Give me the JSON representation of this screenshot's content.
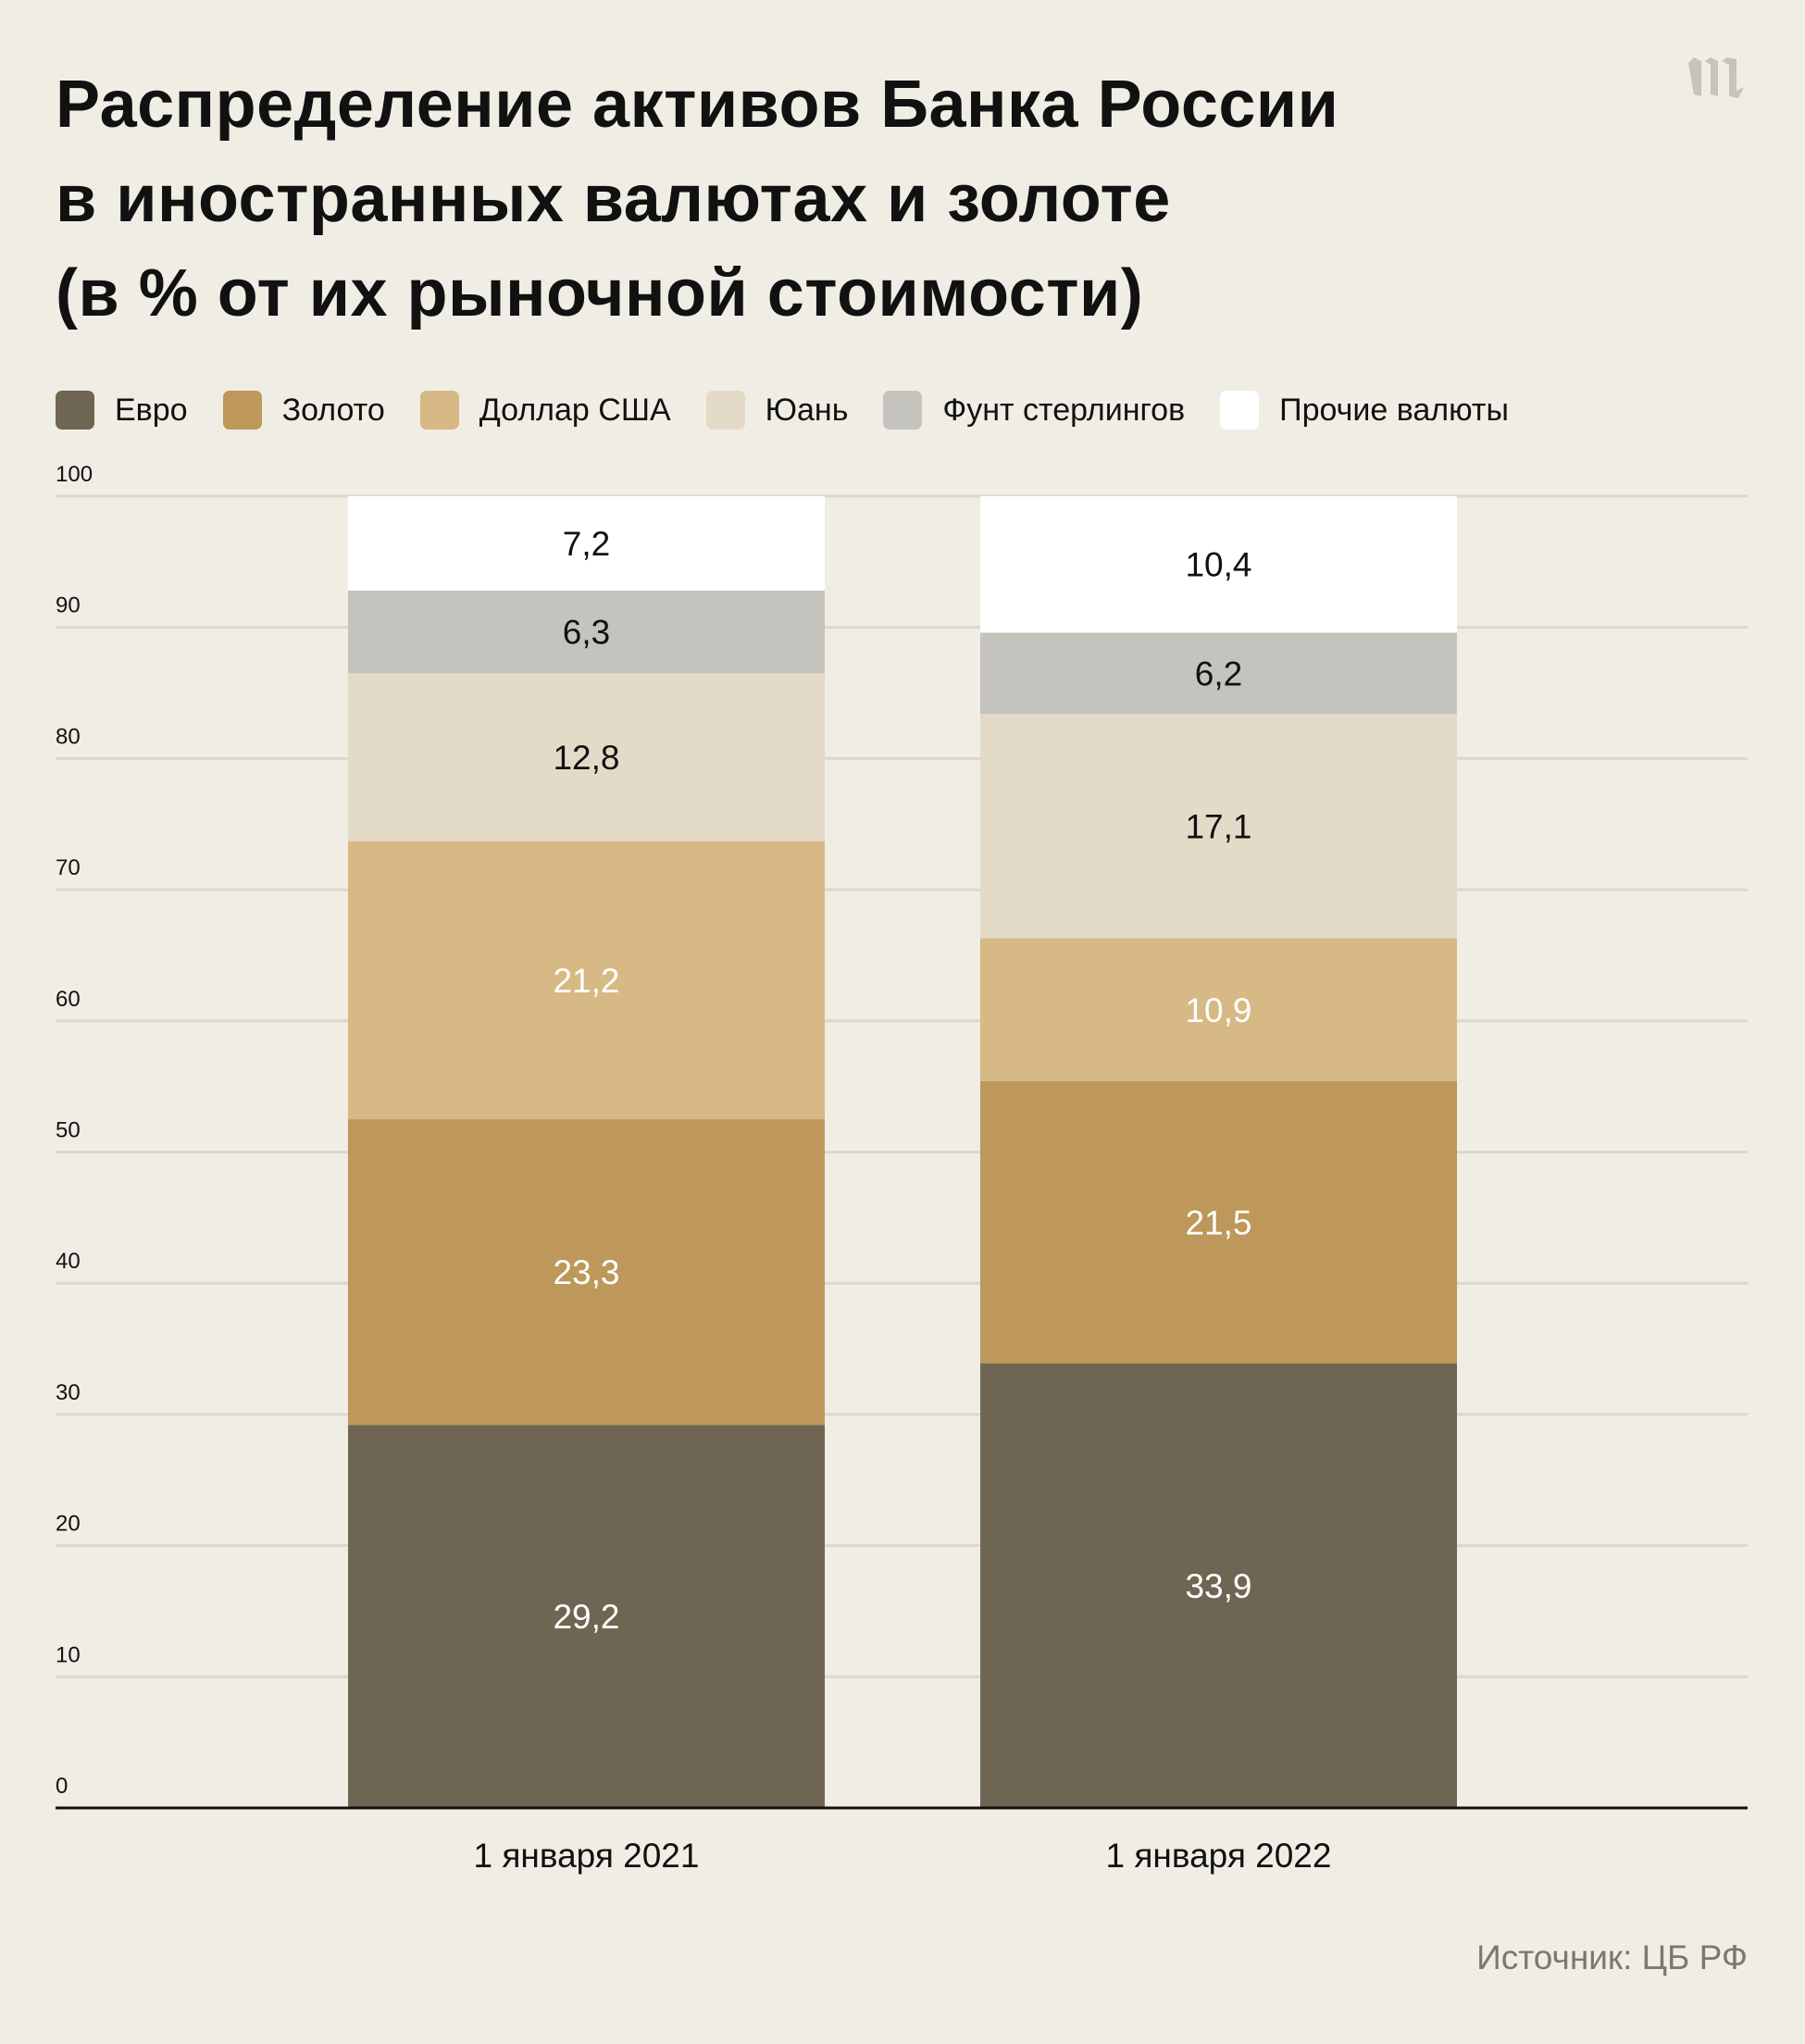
{
  "title_lines": [
    "Распределение активов Банка России",
    "в иностранных валютах и золоте",
    "(в % от их рыночной стоимости)"
  ],
  "logo": "m",
  "source": "Источник: ЦБ РФ",
  "chart_data": {
    "type": "bar",
    "stacked": true,
    "title": "Распределение активов Банка России в иностранных валютах и золоте (в % от их рыночной стоимости)",
    "categories": [
      "1 января 2021",
      "1 января 2022"
    ],
    "series": [
      {
        "name": "Евро",
        "color": "#6e6652",
        "label_color": "#ffffff",
        "values": [
          29.2,
          33.9
        ]
      },
      {
        "name": "Золото",
        "color": "#bd985a",
        "label_color": "#ffffff",
        "values": [
          23.3,
          21.5
        ]
      },
      {
        "name": "Доллар США",
        "color": "#d7b985",
        "label_color": "#ffffff",
        "values": [
          21.2,
          10.9
        ]
      },
      {
        "name": "Юань",
        "color": "#e3dac8",
        "label_color": "#111111",
        "values": [
          12.8,
          17.1
        ]
      },
      {
        "name": "Фунт стерлингов",
        "color": "#c5c3bd",
        "label_color": "#111111",
        "values": [
          6.3,
          6.2
        ]
      },
      {
        "name": "Прочие валюты",
        "color": "#ffffff",
        "label_color": "#111111",
        "values": [
          7.2,
          10.4
        ]
      }
    ],
    "ylim": [
      0,
      100
    ],
    "yticks": [
      0,
      10,
      20,
      30,
      40,
      50,
      60,
      70,
      80,
      90,
      100
    ],
    "xlabel": "",
    "ylabel": "",
    "grid": true,
    "legend": "top-left"
  }
}
